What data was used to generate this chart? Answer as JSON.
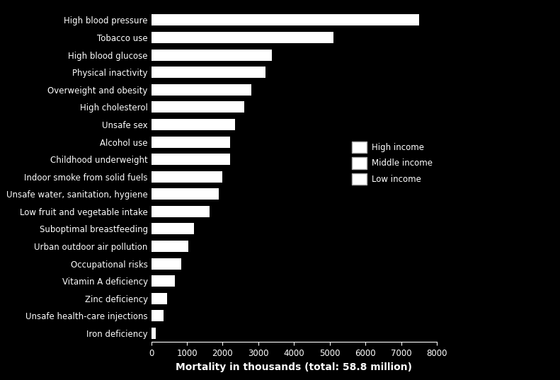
{
  "categories": [
    "Iron deficiency",
    "Unsafe health-care injections",
    "Zinc deficiency",
    "Vitamin A deficiency",
    "Occupational risks",
    "Urban outdoor air pollution",
    "Suboptimal breastfeeding",
    "Low fruit and vegetable intake",
    "Unsafe water, sanitation, hygiene",
    "Indoor smoke from solid fuels",
    "Childhood underweight",
    "Alcohol use",
    "Unsafe sex",
    "High cholesterol",
    "Overweight and obesity",
    "Physical inactivity",
    "High blood glucose",
    "Tobacco use",
    "High blood pressure"
  ],
  "values": [
    130,
    340,
    450,
    668,
    850,
    1040,
    1200,
    1640,
    1900,
    2000,
    2200,
    2200,
    2350,
    2600,
    2800,
    3200,
    3380,
    5100,
    7500
  ],
  "bar_color": "#ffffff",
  "background_color": "#000000",
  "text_color": "#ffffff",
  "xlabel": "Mortality in thousands (total: 58.8 million)",
  "xlim": [
    0,
    8000
  ],
  "xticks": [
    0,
    1000,
    2000,
    3000,
    4000,
    5000,
    6000,
    7000,
    8000
  ],
  "legend_labels": [
    "High income",
    "Middle income",
    "Low income"
  ],
  "bar_height": 0.65,
  "label_fontsize": 8.5,
  "xlabel_fontsize": 10
}
